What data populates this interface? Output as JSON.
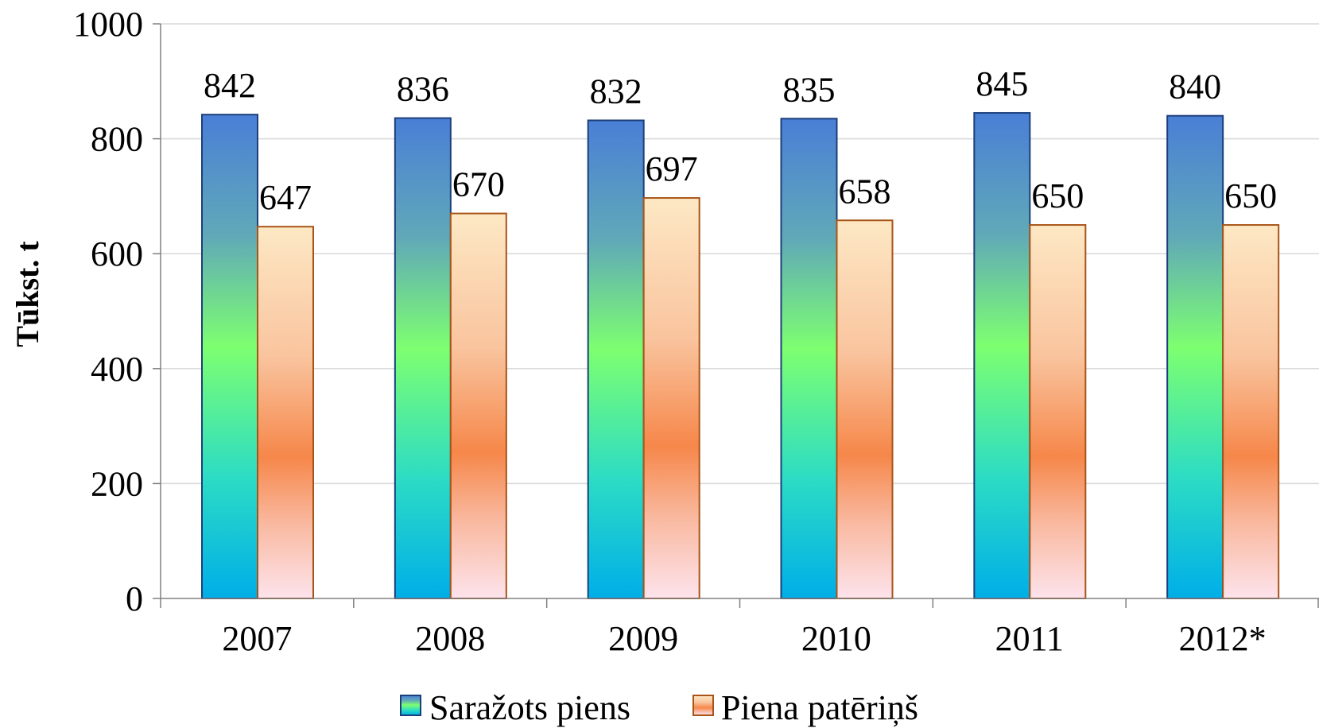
{
  "chart_data": {
    "type": "bar",
    "title": "",
    "xlabel": "",
    "ylabel": "Tūkst. t",
    "categories": [
      "2007",
      "2008",
      "2009",
      "2010",
      "2011",
      "2012*"
    ],
    "series": [
      {
        "name": "Saražots piens",
        "values": [
          842,
          836,
          832,
          835,
          845,
          840
        ]
      },
      {
        "name": "Piena patēriņš",
        "values": [
          647,
          670,
          697,
          658,
          650,
          650
        ]
      }
    ],
    "ylim": [
      0,
      1000
    ],
    "yticks": [
      0,
      200,
      400,
      600,
      800,
      1000
    ],
    "grid": true,
    "legend": "bottom",
    "data_labels": true,
    "colors": {
      "series_1_gradient": [
        "#4a7fd6",
        "#60a9b8",
        "#7dff70",
        "#2cdcc4",
        "#00aee8"
      ],
      "series_1_border": "#1c3f7a",
      "series_2_gradient": [
        "#fde8c4",
        "#f9c49e",
        "#f6874a",
        "#f9b9a0",
        "#fde3ec"
      ],
      "series_2_border": "#a85418",
      "gridline": "#d9d9d9",
      "axis": "#808080"
    }
  }
}
